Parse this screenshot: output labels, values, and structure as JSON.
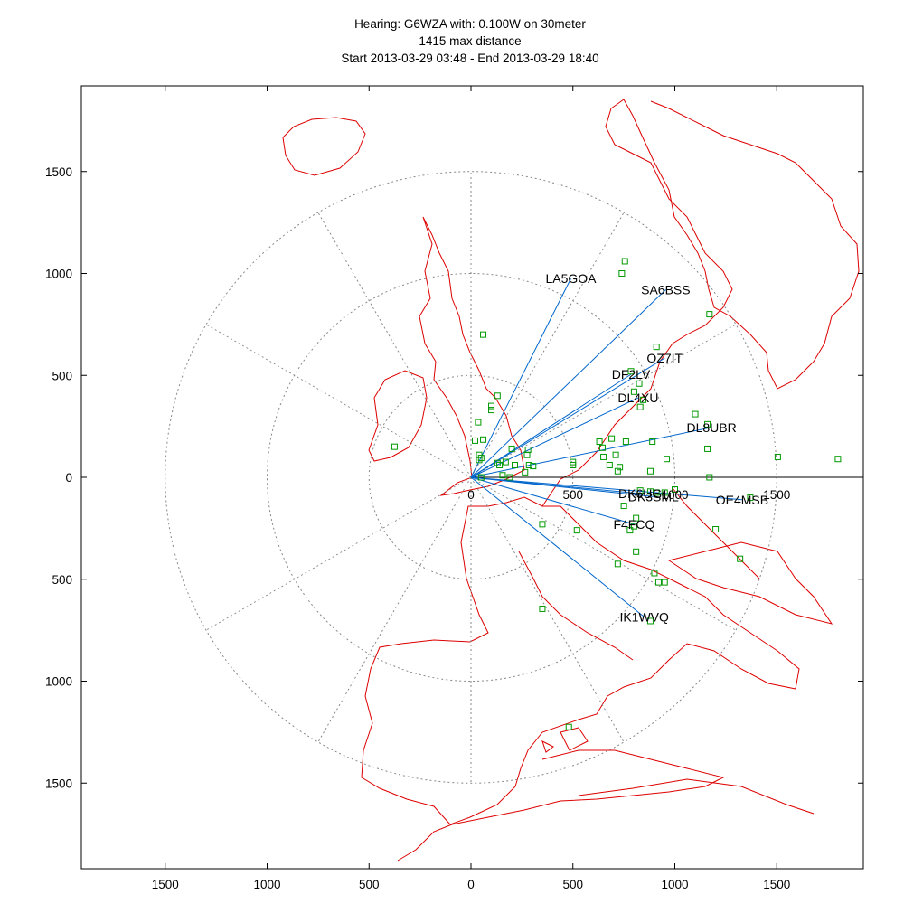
{
  "chart_data": {
    "type": "scatter",
    "title_lines": [
      "Hearing: G6WZA with: 0.100W on 30meter",
      "1415 max distance",
      "Start 2013-03-29 03:48 - End 2013-03-29 18:40"
    ],
    "x_ticks": [
      -1500,
      -1000,
      -500,
      0,
      500,
      1000,
      1500
    ],
    "y_ticks": [
      1500,
      1000,
      500,
      0,
      -500,
      -1000,
      -1500
    ],
    "tick_labels": {
      "x_bottom": [
        "1500",
        "1000",
        "500",
        "0",
        "500",
        "1000",
        "1500"
      ],
      "y_left": [
        "1500",
        "1000",
        "500",
        "0",
        "500",
        "1000",
        "1500"
      ],
      "inner_x": [
        "0",
        "500",
        "1000",
        "1500"
      ]
    },
    "xlim": [
      -1900,
      1900
    ],
    "ylim": [
      -1900,
      1850
    ],
    "range_rings": [
      500,
      1000,
      1500
    ],
    "spoke_angles_deg": [
      30,
      60,
      90,
      120,
      150,
      210,
      240,
      270,
      300,
      330
    ],
    "grid": false,
    "colors": {
      "coastline": "#dd0000",
      "paths": "#0066cc",
      "stations": "#009900",
      "rings": "#888888",
      "axes": "#000000"
    },
    "heard_stations": [
      {
        "call": "LA5GOA",
        "x": 490,
        "y": 975
      },
      {
        "call": "SA6BSS",
        "x": 955,
        "y": 920
      },
      {
        "call": "OZ7IT",
        "x": 950,
        "y": 585
      },
      {
        "call": "DF2LV",
        "x": 785,
        "y": 505
      },
      {
        "call": "DL4XU",
        "x": 820,
        "y": 390
      },
      {
        "call": "DL8UBR",
        "x": 1180,
        "y": 245
      },
      {
        "call": "DK6UG",
        "x": 830,
        "y": -80
      },
      {
        "call": "DK3SML",
        "x": 895,
        "y": -95
      },
      {
        "call": "OE4MSB",
        "x": 1330,
        "y": -110
      },
      {
        "call": "F4FCQ",
        "x": 800,
        "y": -230
      },
      {
        "call": "IK1WVQ",
        "x": 850,
        "y": -685
      }
    ],
    "spots": [
      [
        60,
        700
      ],
      [
        755,
        1060
      ],
      [
        740,
        1000
      ],
      [
        1170,
        800
      ],
      [
        910,
        640
      ],
      [
        785,
        520
      ],
      [
        800,
        420
      ],
      [
        825,
        460
      ],
      [
        845,
        380
      ],
      [
        830,
        345
      ],
      [
        130,
        400
      ],
      [
        100,
        350
      ],
      [
        100,
        330
      ],
      [
        35,
        270
      ],
      [
        20,
        180
      ],
      [
        60,
        185
      ],
      [
        40,
        110
      ],
      [
        -375,
        150
      ],
      [
        50,
        95
      ],
      [
        40,
        85
      ],
      [
        130,
        70
      ],
      [
        170,
        75
      ],
      [
        140,
        60
      ],
      [
        200,
        140
      ],
      [
        275,
        110
      ],
      [
        280,
        135
      ],
      [
        285,
        60
      ],
      [
        215,
        60
      ],
      [
        305,
        55
      ],
      [
        265,
        25
      ],
      [
        155,
        10
      ],
      [
        190,
        0
      ],
      [
        50,
        0
      ],
      [
        500,
        75
      ],
      [
        500,
        60
      ],
      [
        630,
        175
      ],
      [
        690,
        190
      ],
      [
        645,
        145
      ],
      [
        710,
        110
      ],
      [
        760,
        175
      ],
      [
        890,
        175
      ],
      [
        1100,
        310
      ],
      [
        1160,
        260
      ],
      [
        1160,
        140
      ],
      [
        1505,
        100
      ],
      [
        1800,
        90
      ],
      [
        650,
        100
      ],
      [
        680,
        60
      ],
      [
        730,
        50
      ],
      [
        720,
        30
      ],
      [
        880,
        30
      ],
      [
        960,
        90
      ],
      [
        830,
        -65
      ],
      [
        880,
        -70
      ],
      [
        910,
        -75
      ],
      [
        950,
        -75
      ],
      [
        1000,
        -60
      ],
      [
        1170,
        0
      ],
      [
        1370,
        -100
      ],
      [
        750,
        -140
      ],
      [
        810,
        -200
      ],
      [
        800,
        -240
      ],
      [
        780,
        -260
      ],
      [
        810,
        -365
      ],
      [
        720,
        -425
      ],
      [
        900,
        -470
      ],
      [
        920,
        -515
      ],
      [
        950,
        -515
      ],
      [
        1320,
        -400
      ],
      [
        1200,
        -255
      ],
      [
        520,
        -260
      ],
      [
        350,
        -230
      ],
      [
        350,
        -645
      ],
      [
        880,
        -705
      ],
      [
        480,
        -1225
      ]
    ]
  }
}
